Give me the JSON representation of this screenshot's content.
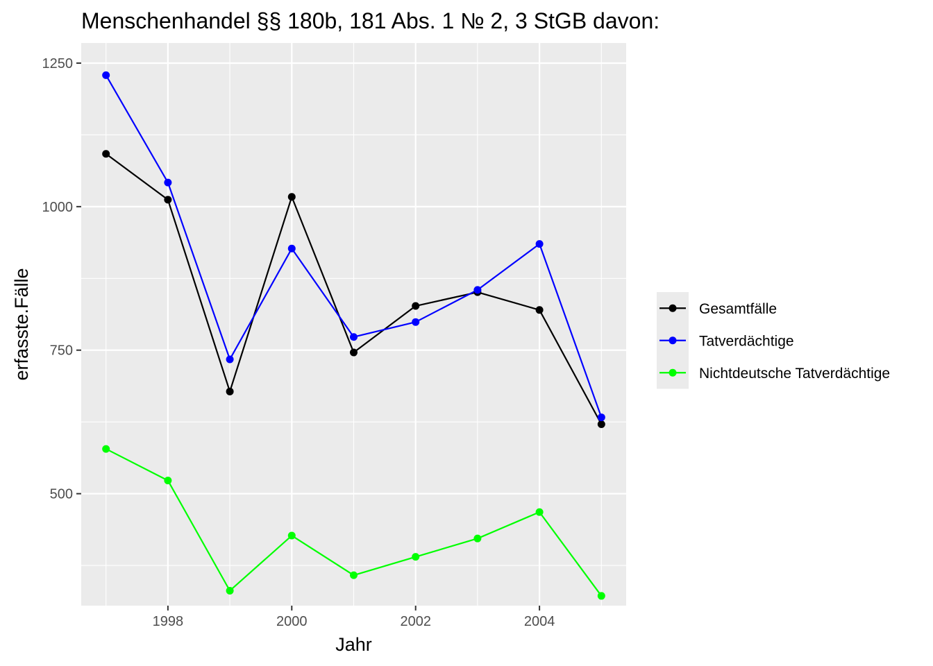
{
  "chart_data": {
    "type": "line",
    "title": "Menschenhandel §§ 180b, 181 Abs. 1 № 2, 3 StGB davon:",
    "xlabel": "Jahr",
    "ylabel": "erfasste.Fälle",
    "x": [
      1997,
      1998,
      1999,
      2000,
      2001,
      2002,
      2003,
      2004,
      2005
    ],
    "xlim": [
      1996.6,
      2005.4
    ],
    "ylim": [
      305,
      1285
    ],
    "x_ticks": [
      1998,
      2000,
      2002,
      2004
    ],
    "x_tick_labels": [
      "1998",
      "2000",
      "2002",
      "2004"
    ],
    "y_ticks": [
      500,
      750,
      1000,
      1250
    ],
    "y_tick_labels": [
      "500",
      "750",
      "1000",
      "1250"
    ],
    "grid": true,
    "legend_position": "right",
    "background_color": "#ebebeb",
    "series": [
      {
        "name": "Gesamtfälle",
        "color": "#000000",
        "values": [
          1092,
          1012,
          678,
          1017,
          746,
          827,
          851,
          820,
          621
        ]
      },
      {
        "name": "Tatverdächtige",
        "color": "#0000ff",
        "values": [
          1229,
          1042,
          734,
          927,
          773,
          799,
          855,
          935,
          633
        ]
      },
      {
        "name": "Nichtdeutsche Tatverdächtige",
        "color": "#00ff00",
        "values": [
          578,
          523,
          331,
          427,
          358,
          390,
          422,
          468,
          322
        ]
      }
    ]
  }
}
